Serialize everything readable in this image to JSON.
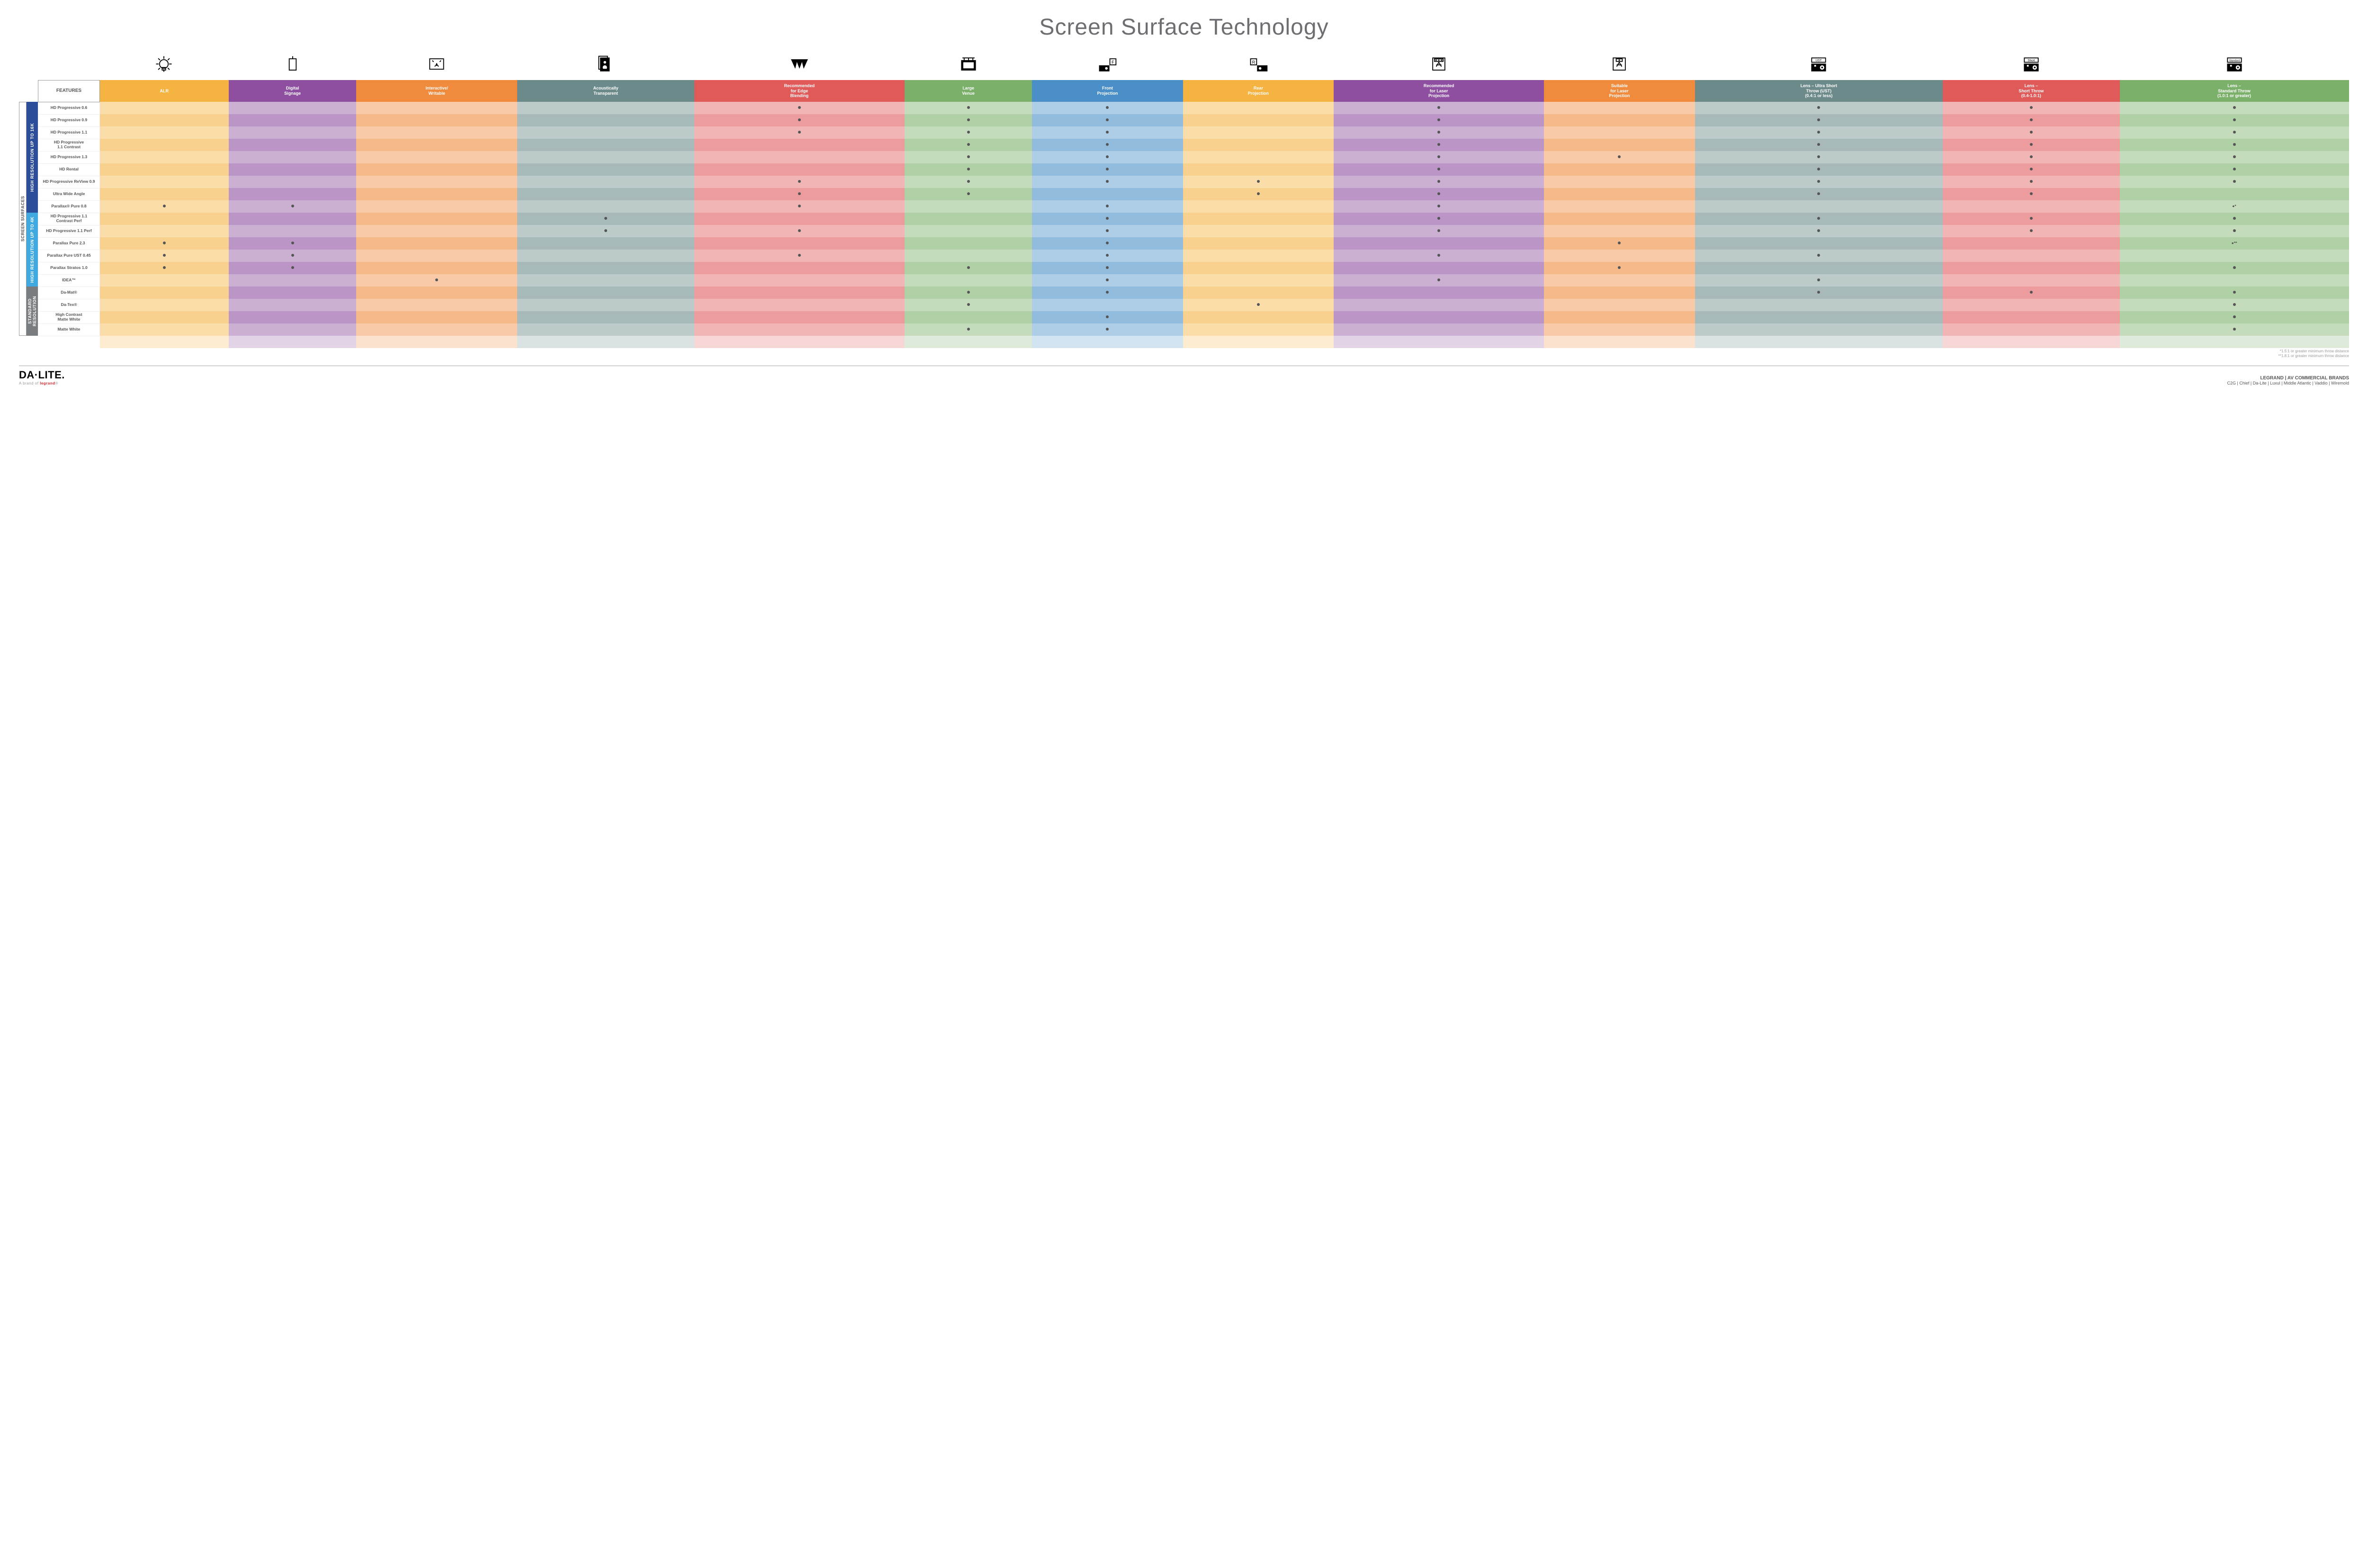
{
  "title": "Screen Surface Technology",
  "featuresLabel": "FEATURES",
  "sideLabel": "SCREEN SURFACES",
  "cols": [
    {
      "label": "ALR",
      "color": "#f5b342",
      "alt": "#f9d291",
      "icon": "bulb"
    },
    {
      "label": "Digital\nSignage",
      "color": "#8e4fa0",
      "alt": "#c4a4d1",
      "icon": "signage"
    },
    {
      "label": "Interactive/\nWritable",
      "color": "#f08a3c",
      "alt": "#f9cfa8",
      "icon": "touch"
    },
    {
      "label": "Acoustically\nTransparent",
      "color": "#6d8a8a",
      "alt": "#b8c8c5",
      "icon": "speaker"
    },
    {
      "label": "Recommended\nfor Edge\nBlending",
      "color": "#e05a5a",
      "alt": "#f2b0a8",
      "icon": "blend"
    },
    {
      "label": "Large\nVenue",
      "color": "#7bb06a",
      "alt": "#c4dcb3",
      "icon": "venue"
    },
    {
      "label": "Front\nProjection",
      "color": "#4a8fc7",
      "alt": "#b0cfe5",
      "icon": "front"
    },
    {
      "label": "Rear\nProjection",
      "color": "#f5b342",
      "alt": "#f9d291",
      "icon": "rear"
    },
    {
      "label": "Recommended\nfor Laser\nProjection",
      "color": "#8e4fa0",
      "alt": "#c4a4d1",
      "icon": "laser-rec"
    },
    {
      "label": "Suitable\nfor Laser\nProjection",
      "color": "#f08a3c",
      "alt": "#f9cfa8",
      "icon": "laser-ok"
    },
    {
      "label": "Lens – Ultra Short\nThrow (UST)\n(0.4:1 or less)",
      "color": "#6d8a8a",
      "alt": "#b8c8c5",
      "icon": "ust"
    },
    {
      "label": "Lens –\nShort Throw\n(0.4-1.0:1)",
      "color": "#e05a5a",
      "alt": "#f2b0a8",
      "icon": "short"
    },
    {
      "label": "Lens –\nStandard Throw\n(1.0:1 or greater)",
      "color": "#7bb06a",
      "alt": "#c4dcb3",
      "icon": "std"
    }
  ],
  "groups": [
    {
      "label": "HIGH RESOLUTION UP TO 16K",
      "color": "#2b4d99",
      "rows": [
        {
          "name": "HD Progressive 0.6",
          "d": [
            0,
            0,
            0,
            0,
            1,
            1,
            1,
            0,
            1,
            0,
            1,
            1,
            1
          ]
        },
        {
          "name": "HD Progressive 0.9",
          "d": [
            0,
            0,
            0,
            0,
            1,
            1,
            1,
            0,
            1,
            0,
            1,
            1,
            1
          ]
        },
        {
          "name": "HD Progressive 1.1",
          "d": [
            0,
            0,
            0,
            0,
            1,
            1,
            1,
            0,
            1,
            0,
            1,
            1,
            1
          ]
        },
        {
          "name": "HD Progressive\n1.1 Contrast",
          "d": [
            0,
            0,
            0,
            0,
            0,
            1,
            1,
            0,
            1,
            0,
            1,
            1,
            1
          ]
        },
        {
          "name": "HD Progressive 1.3",
          "d": [
            0,
            0,
            0,
            0,
            0,
            1,
            1,
            0,
            1,
            1,
            1,
            1,
            1
          ]
        },
        {
          "name": "HD Rental",
          "d": [
            0,
            0,
            0,
            0,
            0,
            1,
            1,
            0,
            1,
            0,
            1,
            1,
            1
          ]
        },
        {
          "name": "HD Progressive ReView 0.9",
          "d": [
            0,
            0,
            0,
            0,
            1,
            1,
            1,
            1,
            1,
            0,
            1,
            1,
            1
          ]
        },
        {
          "name": "Ultra Wide Angle",
          "d": [
            0,
            0,
            0,
            0,
            1,
            1,
            0,
            1,
            1,
            0,
            1,
            1,
            0
          ]
        },
        {
          "name": "Parallax® Pure 0.8",
          "d": [
            1,
            1,
            0,
            0,
            1,
            0,
            1,
            0,
            1,
            0,
            0,
            0,
            "●*"
          ]
        }
      ]
    },
    {
      "label": "HIGH RESOLUTION UP TO 4K",
      "color": "#3fa9e0",
      "rows": [
        {
          "name": "HD Progressive 1.1\nContrast Perf",
          "d": [
            0,
            0,
            0,
            1,
            0,
            0,
            1,
            0,
            1,
            0,
            1,
            1,
            1
          ]
        },
        {
          "name": "HD Progressive 1.1 Perf",
          "d": [
            0,
            0,
            0,
            1,
            1,
            0,
            1,
            0,
            1,
            0,
            1,
            1,
            1
          ]
        },
        {
          "name": "Parallax Pure 2.3",
          "d": [
            1,
            1,
            0,
            0,
            0,
            0,
            1,
            0,
            0,
            1,
            0,
            0,
            "●**"
          ]
        },
        {
          "name": "Parallax Pure UST 0.45",
          "d": [
            1,
            1,
            0,
            0,
            1,
            0,
            1,
            0,
            1,
            0,
            1,
            0,
            0
          ]
        },
        {
          "name": "Parallax Stratos 1.0",
          "d": [
            1,
            1,
            0,
            0,
            0,
            1,
            1,
            0,
            0,
            1,
            0,
            0,
            1
          ]
        },
        {
          "name": "IDEA™",
          "d": [
            0,
            0,
            1,
            0,
            0,
            0,
            1,
            0,
            1,
            0,
            1,
            0,
            0
          ]
        }
      ]
    },
    {
      "label": "STANDARD\nRESOLUTION",
      "color": "#7a7d80",
      "rows": [
        {
          "name": "Da-Mat®",
          "d": [
            0,
            0,
            0,
            0,
            0,
            1,
            1,
            0,
            0,
            0,
            1,
            1,
            1
          ]
        },
        {
          "name": "Da-Tex®",
          "d": [
            0,
            0,
            0,
            0,
            0,
            1,
            0,
            1,
            0,
            0,
            0,
            0,
            1
          ]
        },
        {
          "name": "High Contrast\nMatte White",
          "d": [
            0,
            0,
            0,
            0,
            0,
            0,
            1,
            0,
            0,
            0,
            0,
            0,
            1
          ]
        },
        {
          "name": "Matte White",
          "d": [
            0,
            0,
            0,
            0,
            0,
            1,
            1,
            0,
            0,
            0,
            0,
            0,
            1
          ]
        }
      ]
    }
  ],
  "notes": [
    "*1.5:1 or greater minimum throw distance",
    "**1.8:1 or greater minimum throw distance"
  ],
  "logo": {
    "main": "DA·LITE.",
    "sub": "A brand of ",
    "brand": "legrand"
  },
  "brandsTitle": "LEGRAND | AV COMMERCIAL BRANDS",
  "brands": [
    "C2G",
    "Chief",
    "Da-Lite",
    "Luxul",
    "Middle Atlantic",
    "Vaddio",
    "Wiremold"
  ]
}
